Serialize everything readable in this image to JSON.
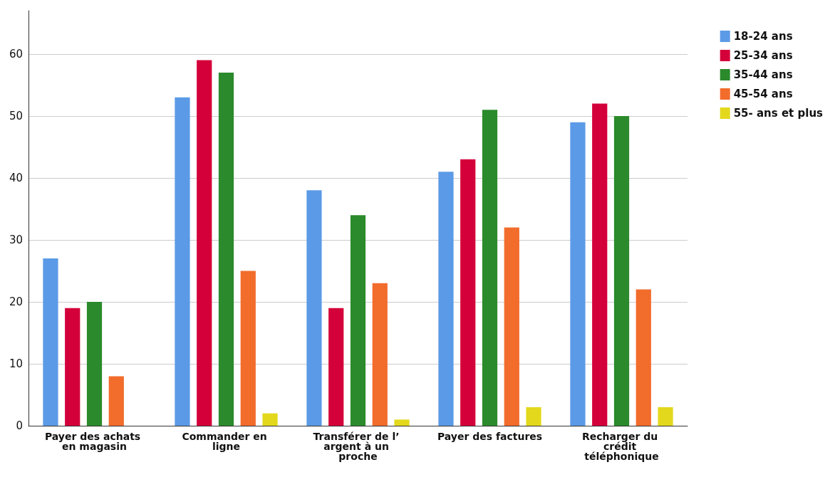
{
  "chart_data": {
    "type": "bar",
    "categories": [
      "Payer des achats en magasin",
      "Commander en ligne",
      "Transférer de l’ argent à un proche",
      "Payer des factures",
      "Recharger du crédit téléphonique"
    ],
    "series": [
      {
        "name": "18-24 ans",
        "color": "#5b9ae6",
        "values": [
          27,
          53,
          38,
          41,
          49
        ]
      },
      {
        "name": "25-34 ans",
        "color": "#d4003a",
        "values": [
          19,
          59,
          19,
          43,
          52
        ]
      },
      {
        "name": "35-44 ans",
        "color": "#2b8a2b",
        "values": [
          20,
          57,
          34,
          51,
          50
        ]
      },
      {
        "name": "45-54 ans",
        "color": "#f26c2c",
        "values": [
          8,
          25,
          23,
          32,
          22
        ]
      },
      {
        "name": "55- ans et plus",
        "color": "#e3d81c",
        "values": [
          null,
          2,
          1,
          3,
          3
        ]
      }
    ],
    "ylim": [
      0,
      67
    ],
    "yticks": [
      0,
      10,
      20,
      30,
      40,
      50,
      60
    ],
    "grid": "y",
    "legend": "top right"
  }
}
